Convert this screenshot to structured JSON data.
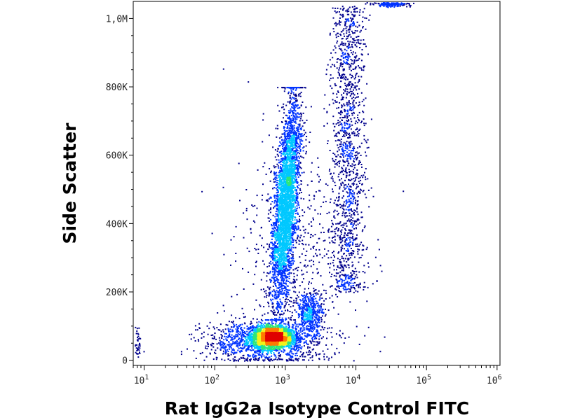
{
  "chart_data": {
    "type": "scatter",
    "subtype": "flow-cytometry-density-dot-plot",
    "xlabel": "Rat IgG2a Isotype Control  FITC",
    "ylabel": "Side Scatter",
    "x_scale": "log",
    "xlim": [
      7,
      1100000
    ],
    "ylim": [
      -15000,
      1050000
    ],
    "x_ticks": [
      {
        "value": 10,
        "label": "10",
        "exp": "1"
      },
      {
        "value": 100,
        "label": "10",
        "exp": "2"
      },
      {
        "value": 1000,
        "label": "10",
        "exp": "3"
      },
      {
        "value": 10000,
        "label": "10",
        "exp": "4"
      },
      {
        "value": 100000,
        "label": "10",
        "exp": "5"
      },
      {
        "value": 1000000,
        "label": "10",
        "exp": "6"
      }
    ],
    "y_ticks": [
      {
        "value": 0,
        "label": "0"
      },
      {
        "value": 200000,
        "label": "200K"
      },
      {
        "value": 400000,
        "label": "400K"
      },
      {
        "value": 600000,
        "label": "600K"
      },
      {
        "value": 800000,
        "label": "800K"
      },
      {
        "value": 1000000,
        "label": "1,0M"
      }
    ],
    "density_colormap": [
      "#00008c",
      "#0033ff",
      "#00c8ff",
      "#2ee67a",
      "#f2f21a",
      "#ff7a00",
      "#e00000"
    ],
    "grid": false,
    "legend": "none",
    "populations": [
      {
        "x_geo": 650,
        "x_spread_decades": 0.14,
        "y": 70000,
        "y_sd": 15000,
        "count": 3200
      },
      {
        "x_geo": 420,
        "x_spread_decades": 0.4,
        "y": 55000,
        "y_sd": 30000,
        "count": 1100
      },
      {
        "x_geo": 1000,
        "y_from": 120000,
        "y_to": 800000,
        "y_center": 460000,
        "x_drift_decades": 0.25,
        "x_spread_decades": 0.08,
        "count": 3600
      },
      {
        "x_geo": 2200,
        "x_spread_decades": 0.09,
        "y": 140000,
        "y_sd": 30000,
        "count": 450
      },
      {
        "x_geo": 7500,
        "y_from": 200000,
        "y_to": 1040000,
        "x_spread_decades": 0.12,
        "count": 1400
      },
      {
        "x_geo": 1500,
        "x_spread_decades": 0.45,
        "y": 280000,
        "y_sd": 180000,
        "count": 650
      },
      {
        "x_geo": 30000,
        "x_spread_decades": 0.12,
        "y": 1043000,
        "y_sd": 3500,
        "count": 160
      },
      {
        "x_geo": 8,
        "x_spread_decades": 0.02,
        "y": 50000,
        "y_sd": 25000,
        "count": 40
      }
    ]
  }
}
